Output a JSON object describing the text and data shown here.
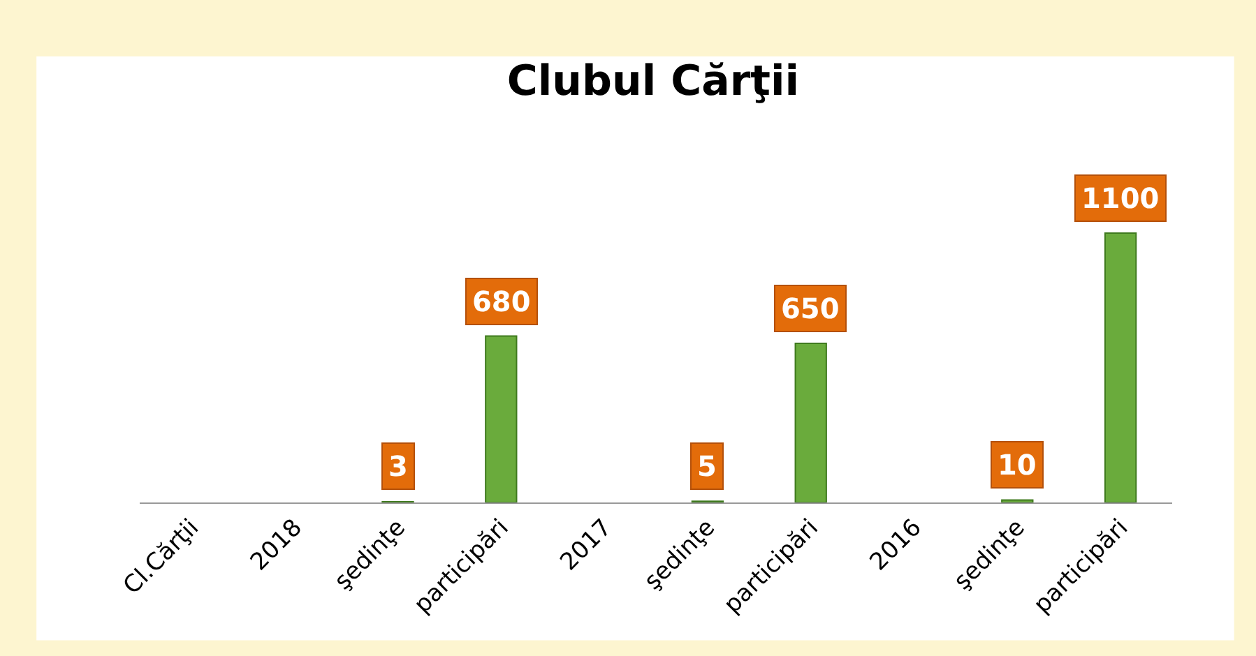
{
  "chart_data": {
    "type": "bar",
    "title": "Clubul Cărţii",
    "categories": [
      "Cl.Cărţii",
      "2018",
      "şedinţe",
      "participări",
      "2017",
      "şedinţe",
      "participări",
      "2016",
      "şedinţe",
      "participări"
    ],
    "values": [
      null,
      null,
      3,
      680,
      null,
      5,
      650,
      null,
      10,
      1100
    ],
    "color": "#6aab3c",
    "data_labels": true
  }
}
